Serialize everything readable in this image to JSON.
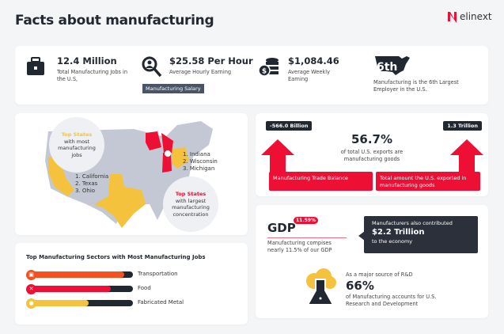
{
  "header": {
    "title": "Facts about manufacturing",
    "logo_text": "elinext"
  },
  "stats": [
    {
      "value": "12.4 Million",
      "label": "Total Manufacturing Jobs in the U.S,",
      "icon": "briefcase-icon"
    },
    {
      "value": "$25.58 Per Hour",
      "label": "Average Hourly Earning",
      "tag": "Manufacturing Salary",
      "icon": "search-person-icon"
    },
    {
      "value": "$1,084.46",
      "label": "Average Weekly Earning",
      "icon": "coins-icon"
    },
    {
      "value": "6th",
      "label": "Manufacturing is the 6th Largest Employer in the U.S.",
      "icon": "us-map-icon"
    }
  ],
  "map": {
    "most_jobs": {
      "heading": "Top States",
      "text": "with most manufacturing jobs",
      "list": [
        "1. California",
        "2. Texas",
        "3. Ohio"
      ]
    },
    "concentration": {
      "heading": "Top States",
      "text": "with largest manufacturing concentration",
      "list": [
        "1. Indiana",
        "2. Wisconsin",
        "3. Michigan"
      ]
    }
  },
  "sectors": {
    "title": "Top Manufacturing Sectors with Most Manufacturing Jobs",
    "items": [
      {
        "label": "Transportation",
        "level": 0.92,
        "color": "#f4511e",
        "icon": "bus-icon",
        "glyph": "▣"
      },
      {
        "label": "Food",
        "level": 0.79,
        "color": "#ee0f35",
        "icon": "utensils-icon",
        "glyph": "✕"
      },
      {
        "label": "Fabricated Metal",
        "level": 0.58,
        "color": "#f4c23c",
        "icon": "gear-icon",
        "glyph": "●"
      }
    ]
  },
  "exports": {
    "left_value": "-566.0 Billion",
    "left_label": "Manufacturing Trade Balance",
    "right_value": "1.3 Trillion",
    "right_label": "Total amount the U.S. exported in manufacturing goods",
    "percent": "56.7%",
    "percent_text": "of total U.S. exports are manufacturing goods"
  },
  "gdp": {
    "title": "GDP",
    "badge": "11.59%",
    "text": "Manufacturing compises nearly 11.5% of our GDP",
    "callout_top": "Manufacturers also contributed",
    "callout_value": "$2.2 Trillion",
    "callout_bottom": "to the economy",
    "rd_intro": "As a major source of R&D",
    "rd_value": "66%",
    "rd_text": "of Manufacturing accounts for U.S. Research and Development"
  },
  "colors": {
    "red": "#ee0f35",
    "yellow": "#f4c23c",
    "dark": "#222831",
    "gray_map": "#c3c8d4"
  }
}
